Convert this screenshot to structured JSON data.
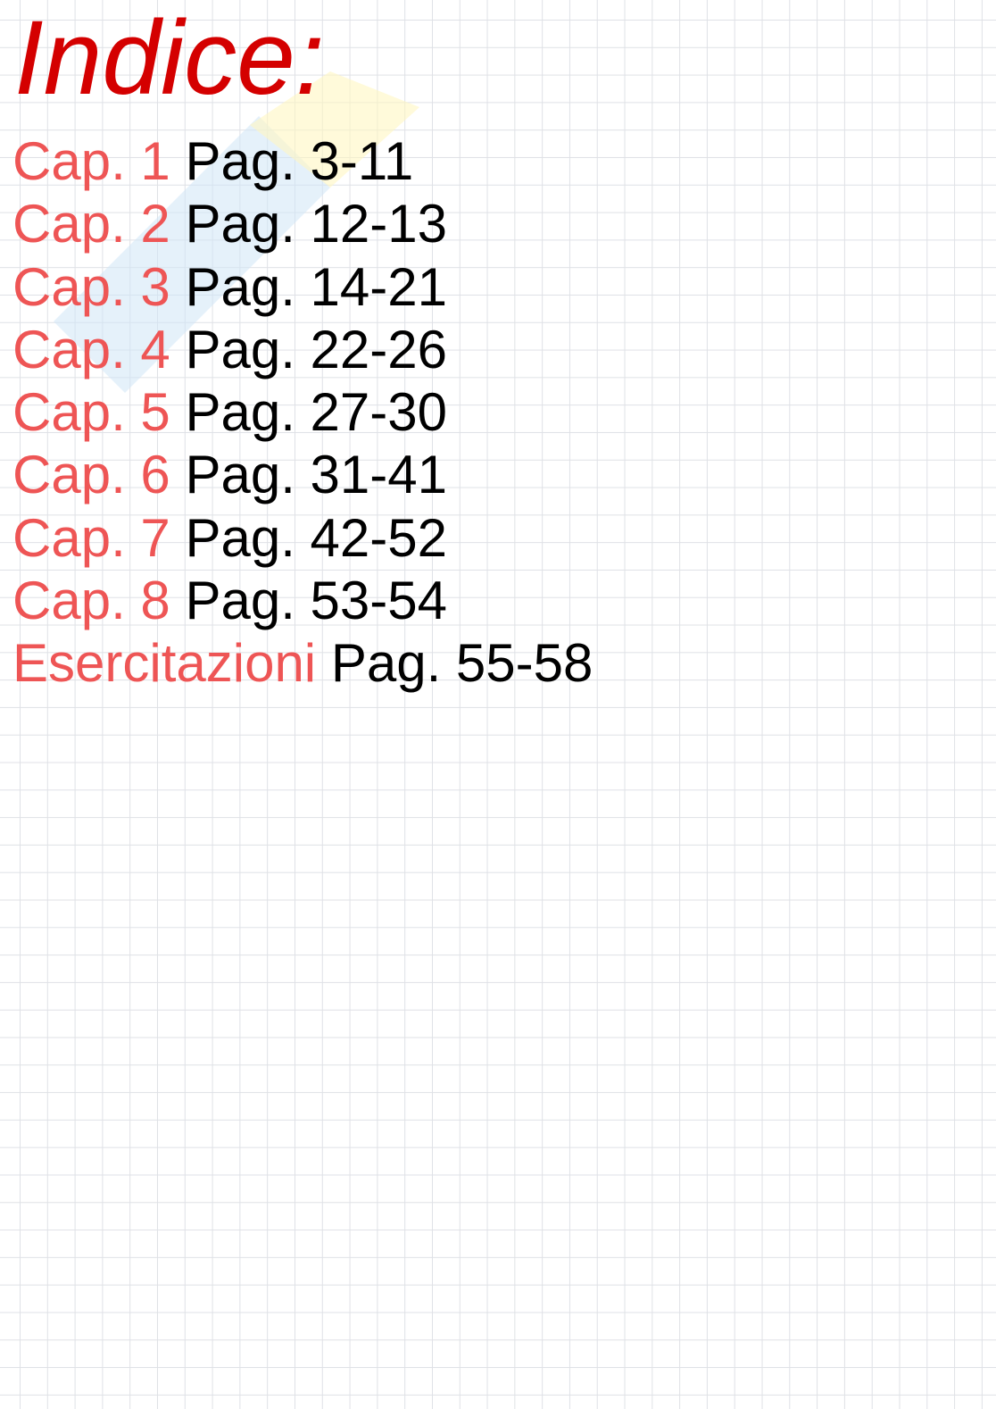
{
  "title": "Indice:",
  "entries": [
    {
      "label": "Cap. 1",
      "pages": "Pag. 3-11"
    },
    {
      "label": "Cap. 2",
      "pages": "Pag. 12-13"
    },
    {
      "label": "Cap. 3",
      "pages": "Pag. 14-21"
    },
    {
      "label": "Cap. 4",
      "pages": "Pag. 22-26"
    },
    {
      "label": "Cap. 5",
      "pages": "Pag. 27-30"
    },
    {
      "label": "Cap. 6",
      "pages": "Pag. 31-41"
    },
    {
      "label": "Cap. 7",
      "pages": "Pag. 42-52"
    },
    {
      "label": "Cap. 8",
      "pages": "Pag. 53-54"
    },
    {
      "label": "Esercitazioni",
      "pages": "Pag. 55-58"
    }
  ],
  "colors": {
    "title": "#d40000",
    "label": "#ee5555",
    "pages": "#000000",
    "grid": "#dfe1e6"
  }
}
